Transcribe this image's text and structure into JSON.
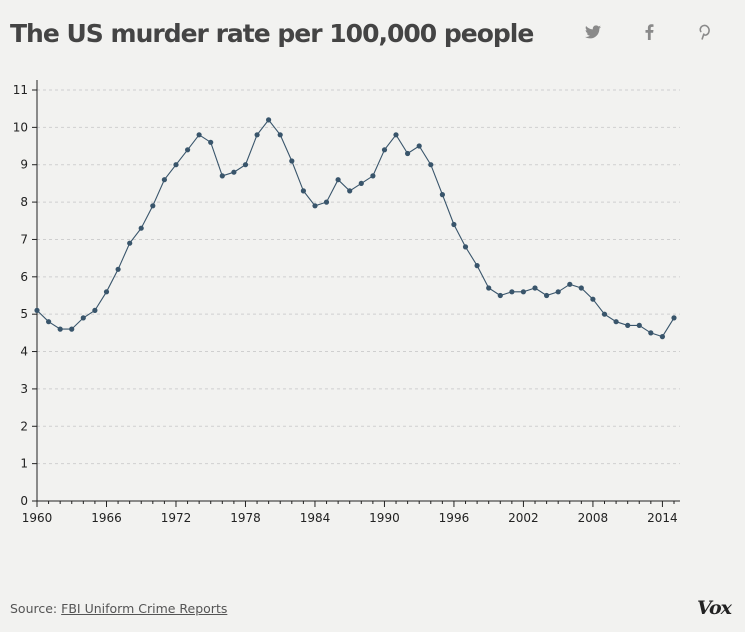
{
  "header": {
    "title": "The US murder rate per 100,000 people"
  },
  "share": {
    "buttons": [
      {
        "name": "twitter",
        "icon": "twitter-icon"
      },
      {
        "name": "facebook",
        "icon": "facebook-icon"
      },
      {
        "name": "pinterest",
        "icon": "pinterest-icon"
      }
    ],
    "icon_color": "#8a8a8a"
  },
  "footer": {
    "source_prefix": "Source:",
    "source_link": "FBI Uniform Crime Reports",
    "logo": "Vox"
  },
  "chart_data": {
    "type": "line",
    "title": "The US murder rate per 100,000 people",
    "xlabel": "",
    "ylabel": "",
    "x_ticks": [
      1960,
      1966,
      1972,
      1978,
      1984,
      1990,
      1996,
      2002,
      2008,
      2014
    ],
    "y_ticks": [
      0,
      1,
      2,
      3,
      4,
      5,
      6,
      7,
      8,
      9,
      10,
      11
    ],
    "xlim": [
      1960,
      2015
    ],
    "ylim": [
      0,
      11
    ],
    "grid": "horizontal dashed",
    "line_color": "#39556b",
    "series": [
      {
        "x": [
          1960,
          1961,
          1962,
          1963,
          1964,
          1965,
          1966,
          1967,
          1968,
          1969,
          1970,
          1971,
          1972,
          1973,
          1974,
          1975,
          1976,
          1977,
          1978,
          1979,
          1980,
          1981,
          1982,
          1983,
          1984,
          1985,
          1986,
          1987,
          1988,
          1989,
          1990,
          1991,
          1992,
          1993,
          1994,
          1995,
          1996,
          1997,
          1998,
          1999,
          2000,
          2001,
          2002,
          2003,
          2004,
          2005,
          2006,
          2007,
          2008,
          2009,
          2010,
          2011,
          2012,
          2013,
          2014,
          2015
        ],
        "values": [
          5.1,
          4.8,
          4.6,
          4.6,
          4.9,
          5.1,
          5.6,
          6.2,
          6.9,
          7.3,
          7.9,
          8.6,
          9.0,
          9.4,
          9.8,
          9.6,
          8.7,
          8.8,
          9.0,
          9.8,
          10.2,
          9.8,
          9.1,
          8.3,
          7.9,
          8.0,
          8.6,
          8.3,
          8.5,
          8.7,
          9.4,
          9.8,
          9.3,
          9.5,
          9.0,
          8.2,
          7.4,
          6.8,
          6.3,
          5.7,
          5.5,
          5.6,
          5.6,
          5.7,
          5.5,
          5.6,
          5.8,
          5.7,
          5.4,
          5.0,
          4.8,
          4.7,
          4.7,
          4.5,
          4.4,
          4.9
        ]
      }
    ]
  }
}
